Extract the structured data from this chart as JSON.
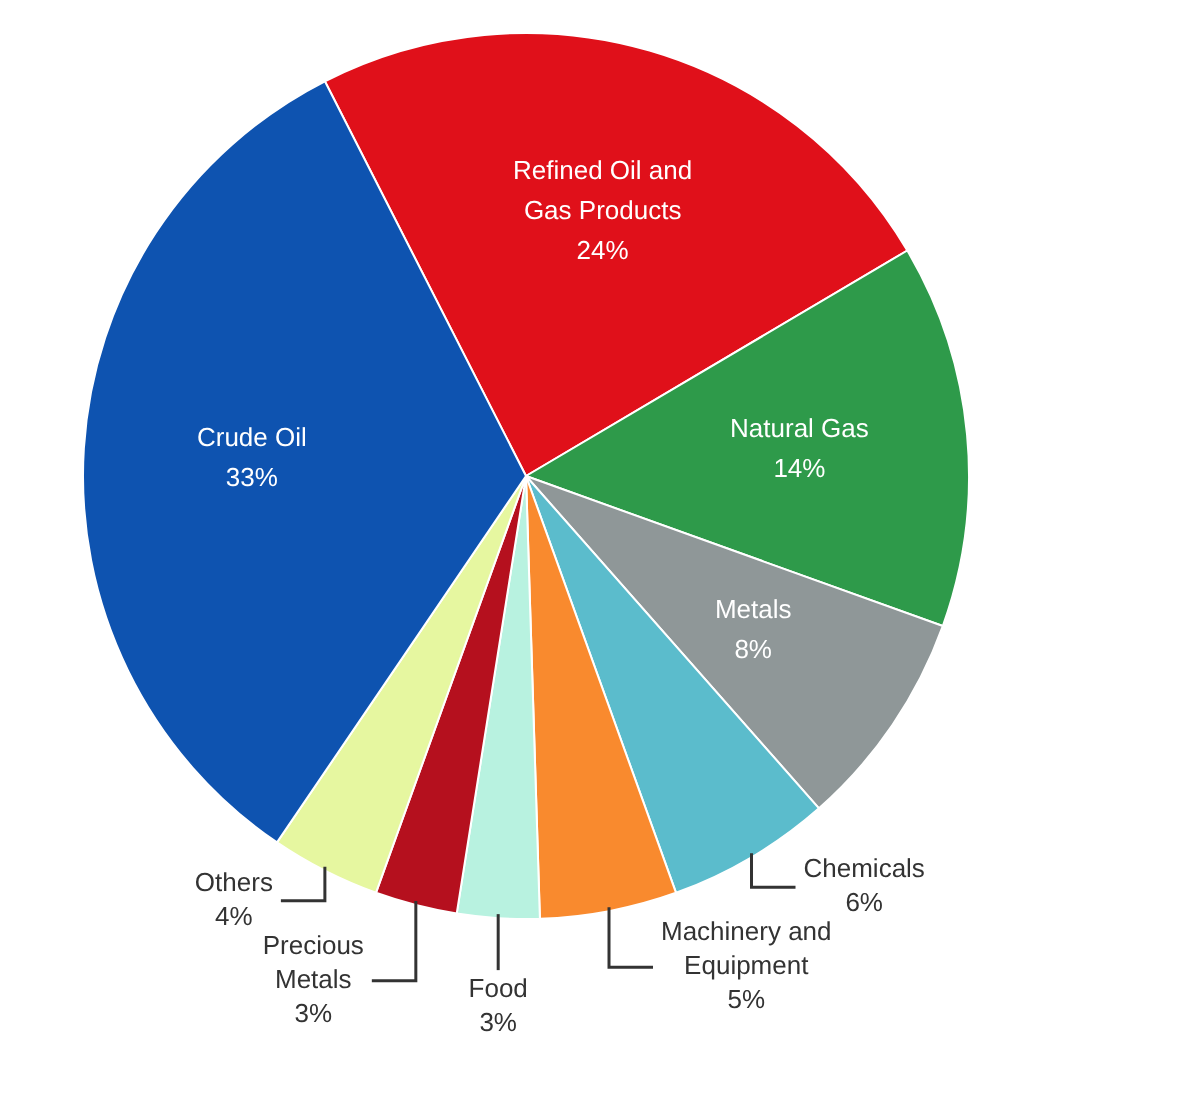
{
  "chart_data": {
    "type": "pie",
    "categories": [
      "Refined Oil and Gas Products",
      "Natural Gas",
      "Metals",
      "Chemicals",
      "Machinery and Equipment",
      "Food",
      "Precious Metals",
      "Others",
      "Crude Oil"
    ],
    "values": [
      24,
      14,
      8,
      6,
      5,
      3,
      3,
      4,
      33
    ],
    "value_labels": [
      "24%",
      "14%",
      "8%",
      "6%",
      "5%",
      "3%",
      "3%",
      "4%",
      "33%"
    ],
    "colors": [
      "#e0101a",
      "#2e9a4a",
      "#8f9798",
      "#5bbccc",
      "#f98a2e",
      "#b8f2e0",
      "#b5101e",
      "#e6f7a0",
      "#0e53b0"
    ],
    "legend": false
  }
}
